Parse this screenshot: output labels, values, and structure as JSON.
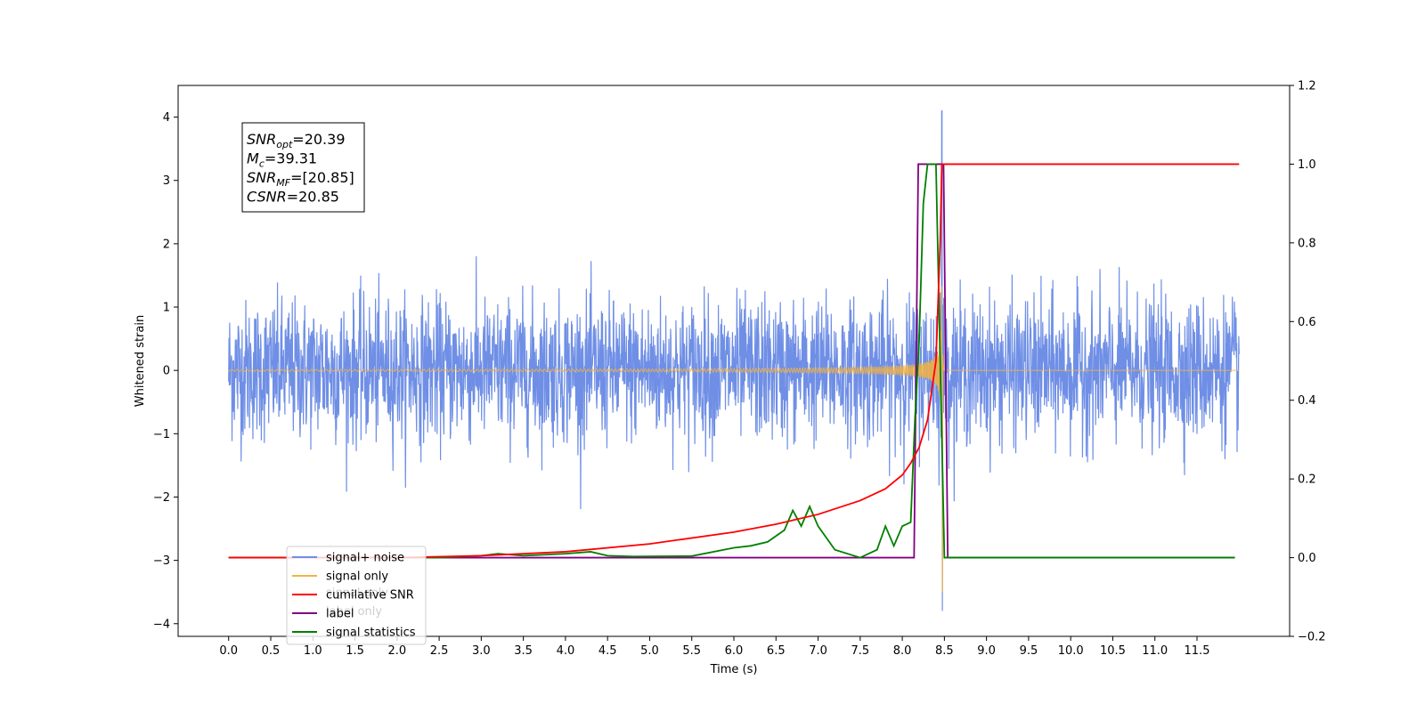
{
  "chart_data": {
    "type": "line",
    "xlabel": "Time (s)",
    "ylabel": "Whitened strain",
    "xlim": [
      -0.6,
      12.6
    ],
    "ylim": [
      -4.2,
      4.5
    ],
    "y2lim": [
      -0.2,
      1.2
    ],
    "x_ticks": [
      "0.0",
      "0.5",
      "1.0",
      "1.5",
      "2.0",
      "2.5",
      "3.0",
      "3.5",
      "4.0",
      "4.5",
      "5.0",
      "5.5",
      "6.0",
      "6.5",
      "7.0",
      "7.5",
      "8.0",
      "8.5",
      "9.0",
      "9.5",
      "10.0",
      "10.5",
      "11.0",
      "11.5"
    ],
    "y_ticks": [
      "−4",
      "−3",
      "−2",
      "−1",
      "0",
      "1",
      "2",
      "3",
      "4"
    ],
    "y2_ticks": [
      "−0.2",
      "0.0",
      "0.2",
      "0.4",
      "0.6",
      "0.8",
      "1.0",
      "1.2"
    ],
    "annotation": {
      "lines": [
        {
          "main": "SNR",
          "sub": "opt",
          "rest": "=20.39"
        },
        {
          "main": "M",
          "sub": "c",
          "rest": "=39.31"
        },
        {
          "main": "SNR",
          "sub": "MF",
          "rest": "=[20.85]"
        },
        {
          "main": "CSNR",
          "sub": "",
          "rest": "=20.85"
        }
      ]
    },
    "series": [
      {
        "name": "signal+ noise",
        "axis": "left",
        "color": "#6f8fe6",
        "description_points": {
          "t_start": 0.0,
          "t_end": 12.0,
          "noise_envelope": 1.3,
          "peak_time": 8.47,
          "peak_value": 4.1,
          "min_value": -3.8
        }
      },
      {
        "name": "signal only",
        "axis": "left",
        "color": "#f5b342",
        "description_points": {
          "t_start": 0.0,
          "t_end": 12.0,
          "merger_time": 8.47,
          "peak_amplitude": 1.5,
          "min_value": -3.5
        }
      },
      {
        "name": "cumilative SNR",
        "axis": "right",
        "color": "#ff0000",
        "x": [
          0.0,
          2.0,
          3.0,
          4.0,
          5.0,
          6.0,
          6.5,
          7.0,
          7.5,
          7.8,
          8.0,
          8.1,
          8.2,
          8.3,
          8.4,
          8.45,
          8.47,
          12.0
        ],
        "y": [
          0.0,
          0.0,
          0.005,
          0.015,
          0.035,
          0.065,
          0.085,
          0.11,
          0.145,
          0.175,
          0.21,
          0.24,
          0.28,
          0.35,
          0.5,
          0.8,
          1.0,
          1.0
        ]
      },
      {
        "name": "label",
        "axis": "right",
        "color": "#800080",
        "x": [
          0.0,
          8.14,
          8.19,
          8.49,
          8.54,
          11.95
        ],
        "y": [
          0.0,
          0.0,
          1.0,
          1.0,
          0.0,
          0.0
        ]
      },
      {
        "name": "signal statistics",
        "axis": "right",
        "color": "#008000",
        "x": [
          0.0,
          2.5,
          3.0,
          3.2,
          3.5,
          4.0,
          4.3,
          4.5,
          4.8,
          5.5,
          6.0,
          6.2,
          6.4,
          6.6,
          6.7,
          6.8,
          6.9,
          7.0,
          7.2,
          7.5,
          7.7,
          7.8,
          7.9,
          8.0,
          8.1,
          8.15,
          8.2,
          8.25,
          8.3,
          8.35,
          8.4,
          8.45,
          8.5,
          11.95
        ],
        "y": [
          0.0,
          0.0,
          0.005,
          0.01,
          0.005,
          0.01,
          0.015,
          0.005,
          0.003,
          0.004,
          0.025,
          0.03,
          0.04,
          0.07,
          0.12,
          0.08,
          0.13,
          0.08,
          0.02,
          0.0,
          0.02,
          0.08,
          0.03,
          0.08,
          0.09,
          0.35,
          0.55,
          0.9,
          1.0,
          1.0,
          1.0,
          0.5,
          0.0,
          0.0
        ]
      }
    ],
    "legend": {
      "placement": "lower-left",
      "entries": [
        {
          "label": "signal+ noise",
          "color": "#6f8fe6"
        },
        {
          "label": "signal only",
          "color": "#f5b342"
        },
        {
          "label": "cumilative SNR",
          "color": "#ff0000"
        },
        {
          "label": "label",
          "color": "#800080"
        },
        {
          "label": "signal statistics",
          "color": "#008000"
        }
      ],
      "overlapped_text": [
        "signal only",
        "label only"
      ]
    },
    "grid": false
  }
}
